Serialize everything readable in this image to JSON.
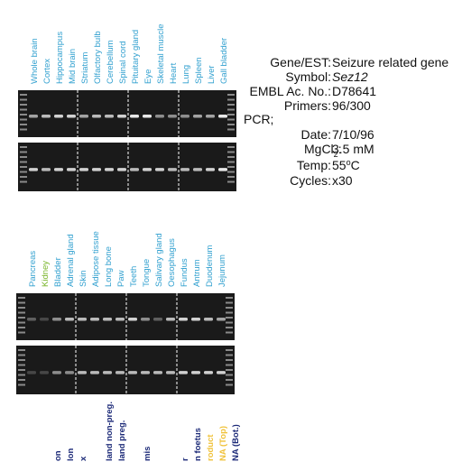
{
  "sections": [
    {
      "lanes": [
        "Whole brain",
        "Cortex",
        "Hippocampus",
        "Mid brain",
        "Striatum",
        "Olfactory bulb",
        "Cerebellum",
        "Spinal cord",
        "Pituitary gland",
        "Eye",
        "Skeletal muscle",
        "Heart",
        "Lung",
        "Spleen",
        "Liver",
        "Gall bladder"
      ]
    },
    {
      "lanes": [
        "Pancreas",
        "Kidney",
        "Bladder",
        "Adrenal gland",
        "Skin",
        "Adipose tissue",
        "Long bone",
        "Paw",
        "Teeth",
        "Tongue",
        "Salivary gland",
        "Oesophagus",
        "Fundus",
        "Antrum",
        "Duodenum",
        "Jejunum"
      ]
    },
    {
      "lanes": [
        "on",
        "lon",
        "x",
        "land non-preg.",
        "land preg.",
        "mis",
        "r",
        "n foetus",
        "roduct",
        "NA (Top)",
        "NA (Bot.)"
      ]
    }
  ],
  "info": {
    "gene_label": "Gene/EST:",
    "gene": "Seizure related gene",
    "symbol_label": "Symbol:",
    "symbol": "Sez12",
    "embl_label": "EMBL Ac. No.:",
    "embl": "D78641",
    "primers_label": "Primers:",
    "primers": "96/300",
    "pcr": "PCR;",
    "date_label": "Date:",
    "date": "7/10/96",
    "mgcl_label": "MgCl",
    "mgcl_sub": "2",
    "mgcl_colon": ":",
    "mgcl": "3.5 mM",
    "temp_label": "Temp:",
    "temp": "55",
    "temp_sup": "o",
    "temp_unit": "C",
    "cycles_label": "Cycles:",
    "cycles": "x30"
  }
}
